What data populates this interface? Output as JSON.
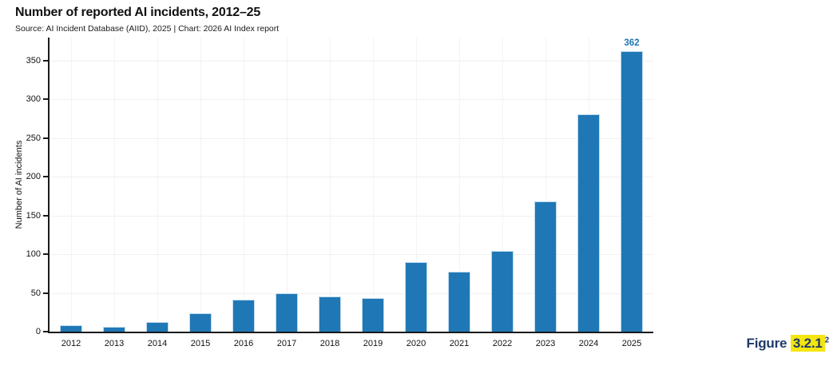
{
  "chart_data": {
    "type": "bar",
    "title": "Number of reported AI incidents, 2012–25",
    "subtitle": "Source: AI Incident Database (AIID), 2025 | Chart: 2026 AI Index report",
    "ylabel": "Number of AI incidents",
    "xlabel": "",
    "categories": [
      "2012",
      "2013",
      "2014",
      "2015",
      "2016",
      "2017",
      "2018",
      "2019",
      "2020",
      "2021",
      "2022",
      "2023",
      "2024",
      "2025"
    ],
    "values": [
      8,
      6,
      12,
      24,
      41,
      50,
      45,
      43,
      90,
      77,
      104,
      168,
      281,
      362
    ],
    "ylim": [
      0,
      380
    ],
    "yticks": [
      0,
      50,
      100,
      150,
      200,
      250,
      300,
      350
    ],
    "grid": true,
    "legend": "none",
    "bar_color": "#1F78B5",
    "bar_edge_color": "#BFDAEE",
    "value_labels": [
      {
        "category": "2025",
        "text": "362"
      }
    ],
    "value_label_color": "#1F78B5"
  },
  "figure_label": {
    "prefix": "Figure ",
    "number": "3.2.1",
    "superscript": "2",
    "text_color": "#1E3A66",
    "highlight_color": "#F5E511"
  },
  "colors": {
    "axis": "#1A1A1A",
    "grid_h": "#F0F0F0",
    "grid_v": "#F4F3F5",
    "background": "#FFFFFF"
  }
}
